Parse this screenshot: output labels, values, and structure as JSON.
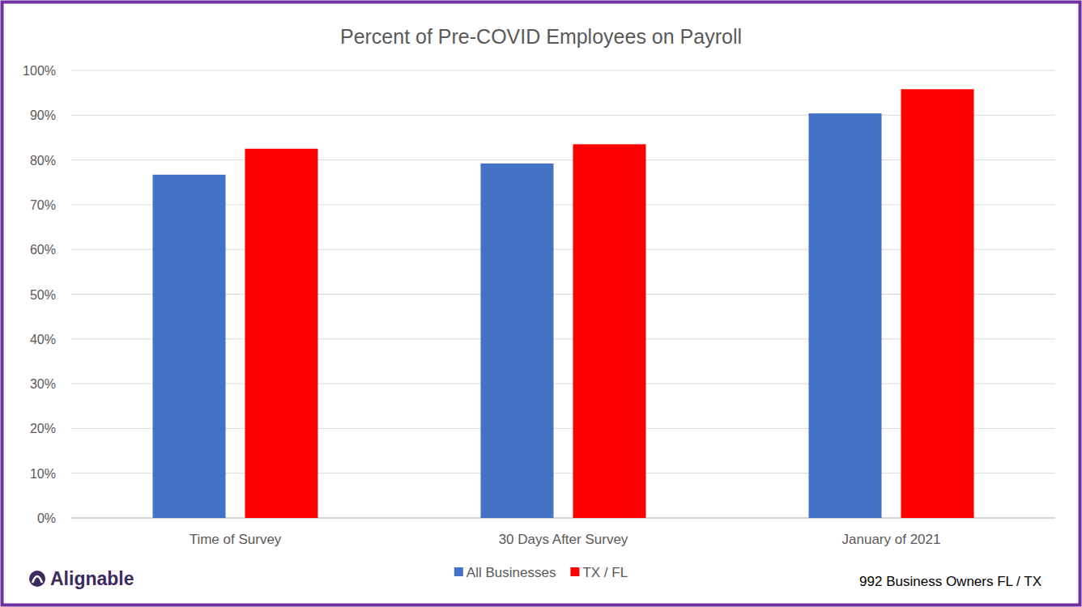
{
  "chart_data": {
    "type": "bar",
    "title": "Percent of Pre-COVID Employees on Payroll",
    "categories": [
      "Time of Survey",
      "30 Days After Survey",
      "January of 2021"
    ],
    "series": [
      {
        "name": "All Businesses",
        "color": "#4472c4",
        "values": [
          76.7,
          79.2,
          90.4
        ]
      },
      {
        "name": "TX / FL",
        "color": "#ff0000",
        "values": [
          82.5,
          83.5,
          95.8
        ]
      }
    ],
    "ylim": [
      0,
      100
    ],
    "yticks": [
      {
        "value": 0,
        "label": "0%"
      },
      {
        "value": 10,
        "label": "10%"
      },
      {
        "value": 20,
        "label": "20%"
      },
      {
        "value": 30,
        "label": "30%"
      },
      {
        "value": 40,
        "label": "40%"
      },
      {
        "value": 50,
        "label": "50%"
      },
      {
        "value": 60,
        "label": "60%"
      },
      {
        "value": 70,
        "label": "70%"
      },
      {
        "value": 80,
        "label": "80%"
      },
      {
        "value": 90,
        "label": "90%"
      },
      {
        "value": 100,
        "label": "100%"
      }
    ],
    "grid": true,
    "legend": "bottom",
    "annotations": [
      "Alignable",
      "992 Business Owners FL / TX"
    ]
  }
}
